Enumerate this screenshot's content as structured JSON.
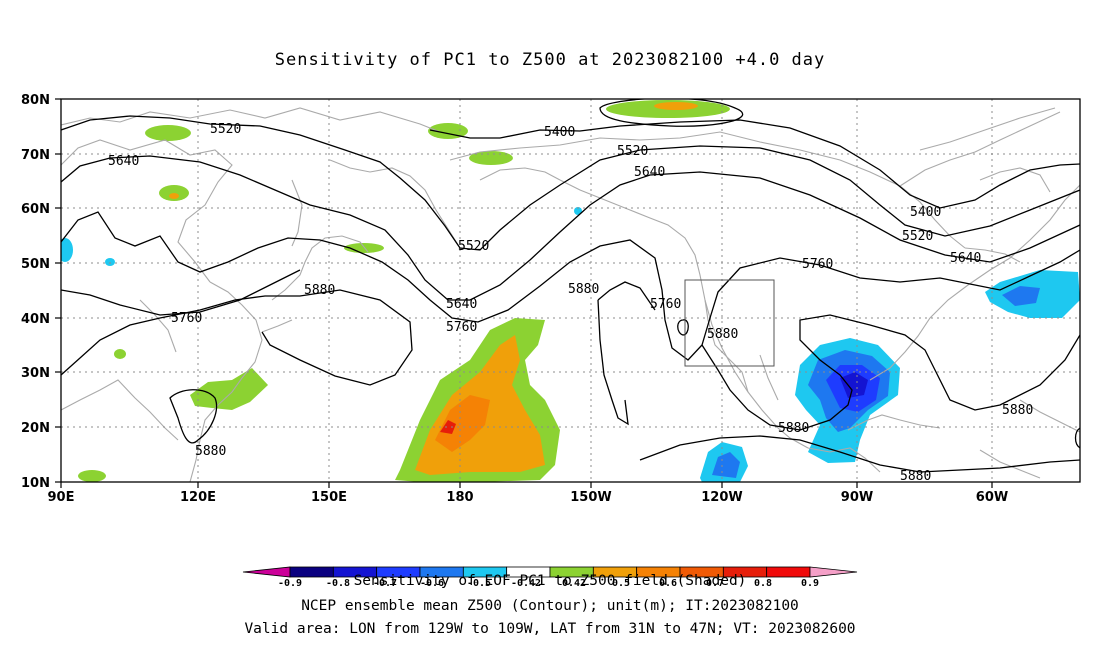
{
  "title": "Sensitivity of PC1 to Z500 at 2023082100 +4.0 day",
  "axes": {
    "lat_labels": [
      "80N",
      "70N",
      "60N",
      "50N",
      "40N",
      "30N",
      "20N",
      "10N"
    ],
    "lon_labels": [
      "90E",
      "120E",
      "150E",
      "180",
      "150W",
      "120W",
      "90W",
      "60W"
    ]
  },
  "contour_labels": {
    "c5520a": "5520",
    "c5640a": "5640",
    "c5400a": "5400",
    "c5520b": "5520",
    "c5640b": "5640",
    "c5520c": "5520",
    "c5400b": "5400",
    "c5520d": "5520",
    "c5760a": "5760",
    "c5640c": "5640",
    "c5880a": "5880",
    "c5760b": "5760",
    "c5640d": "5640",
    "c5760c": "5760",
    "c5880b": "5880",
    "c5760d": "5760",
    "c5880c": "5880",
    "c5880d": "5880",
    "c5880e": "5880",
    "c5880f": "5880",
    "c5880g": "5880"
  },
  "colorbar": {
    "colors": [
      "#cc0099",
      "#0a0080",
      "#1414d2",
      "#1e3cff",
      "#1e78f0",
      "#1ec8f0",
      "#ffffff",
      "#8cd232",
      "#f0a00a",
      "#f58205",
      "#f05a05",
      "#e61e0a",
      "#f00a0a",
      "#f5a0c8"
    ],
    "labels": [
      "-0.9",
      "-0.8",
      "-0.7",
      "-0.6",
      "-0.5",
      "-0.42",
      "0.42",
      "0.5",
      "0.6",
      "0.7",
      "0.8",
      "0.9"
    ]
  },
  "footer": {
    "line1": "Sensitivity of EOF PC1 to Z500 field (Shaded)",
    "line2": "NCEP ensemble mean Z500 (Contour); unit(m); IT:2023082100",
    "line3": "Valid area: LON from 129W to 109W, LAT from 31N to 47N; VT: 2023082600"
  }
}
